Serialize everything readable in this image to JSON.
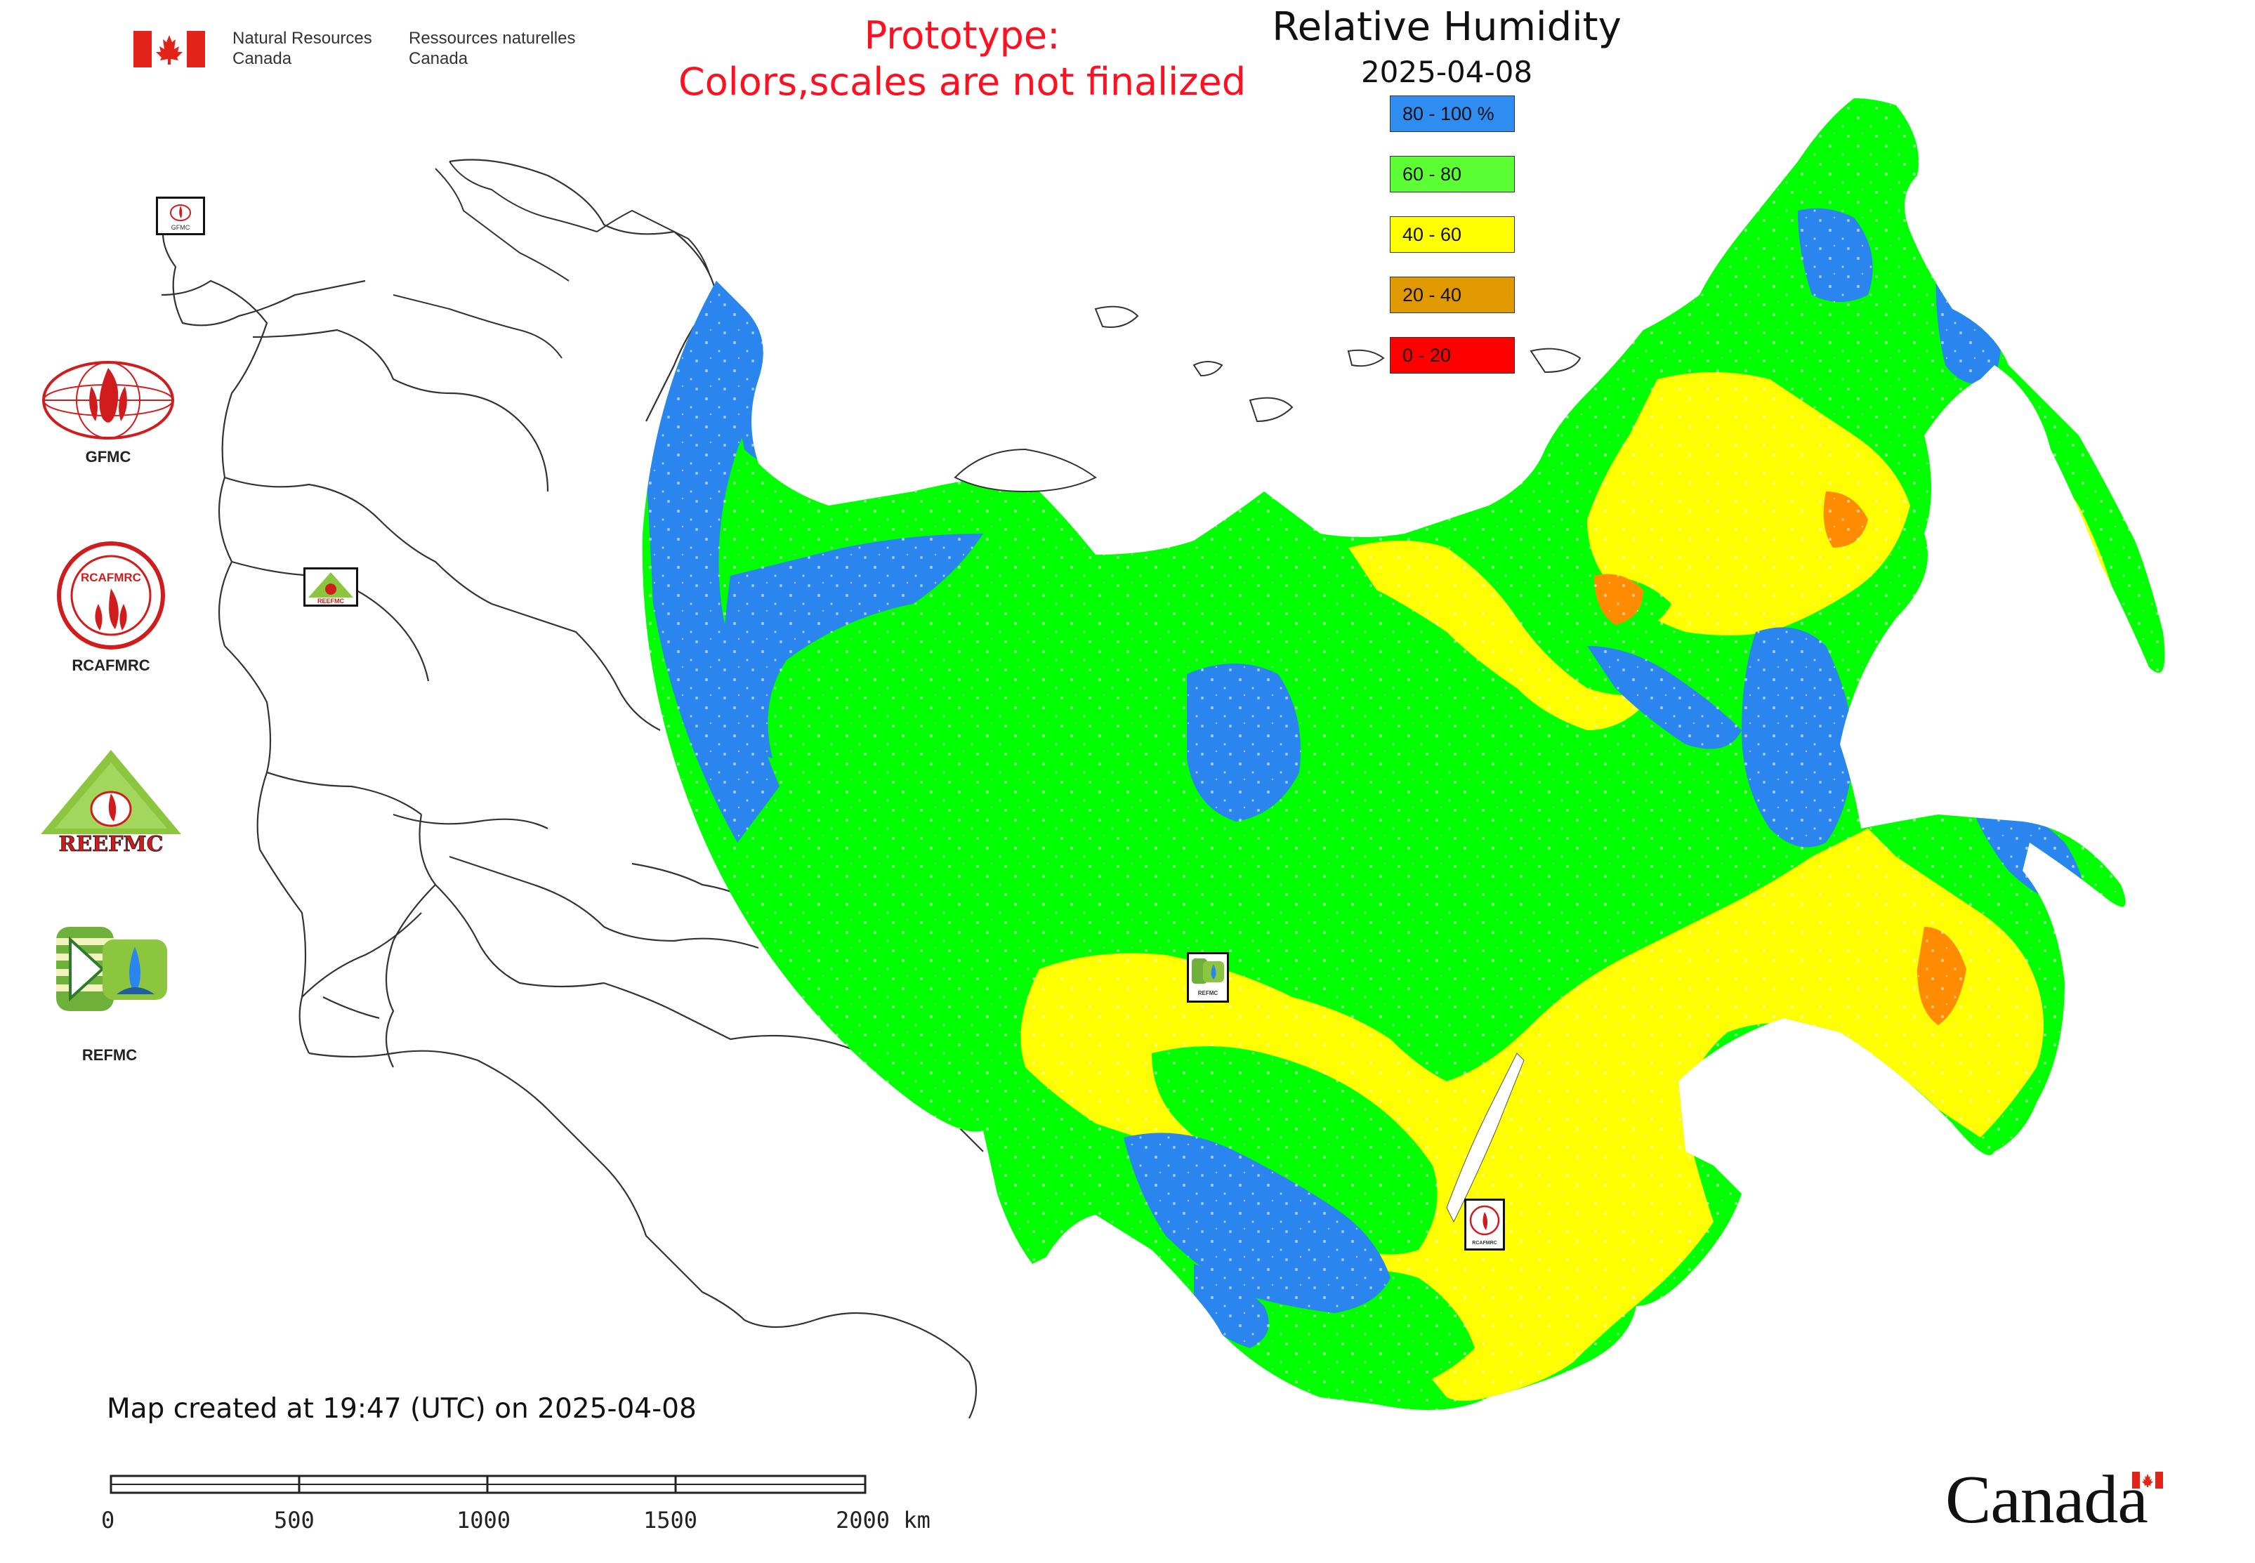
{
  "header": {
    "org_en_line1": "Natural Resources",
    "org_en_line2": "Canada",
    "org_fr_line1": "Ressources naturelles",
    "org_fr_line2": "Canada",
    "prototype_line1": "Prototype:",
    "prototype_line2": "Colors,scales are not finalized"
  },
  "map": {
    "title": "Relative Humidity",
    "date": "2025-04-08",
    "created_text": "Map created at 19:47 (UTC) on 2025-04-08",
    "legend": [
      {
        "label": "80 - 100 %",
        "color": "#2f8cf0"
      },
      {
        "label": "60 - 80",
        "color": "#5cff33"
      },
      {
        "label": "40 - 60",
        "color": "#ffff00"
      },
      {
        "label": "20 - 40",
        "color": "#e09a00"
      },
      {
        "label": "0 - 20",
        "color": "#ff0000"
      }
    ],
    "fill_colors": {
      "very_humid": "#2a86ee",
      "humid": "#00ff00",
      "moderate": "#ffff00",
      "dry": "#ff8c00",
      "no_data": "#ffffff",
      "border": "#333333"
    }
  },
  "scale_bar": {
    "labels": [
      "0",
      "500",
      "1000",
      "1500",
      "2000 km"
    ]
  },
  "logos": {
    "gfmc": "GFMC",
    "rcafmrc": "RCAFMRC",
    "reefmc": "REEFMC",
    "refmc": "REFMC",
    "rcafmrc_ring": "RCAFMRC"
  },
  "footer": {
    "canada_wordmark": "Canada"
  }
}
